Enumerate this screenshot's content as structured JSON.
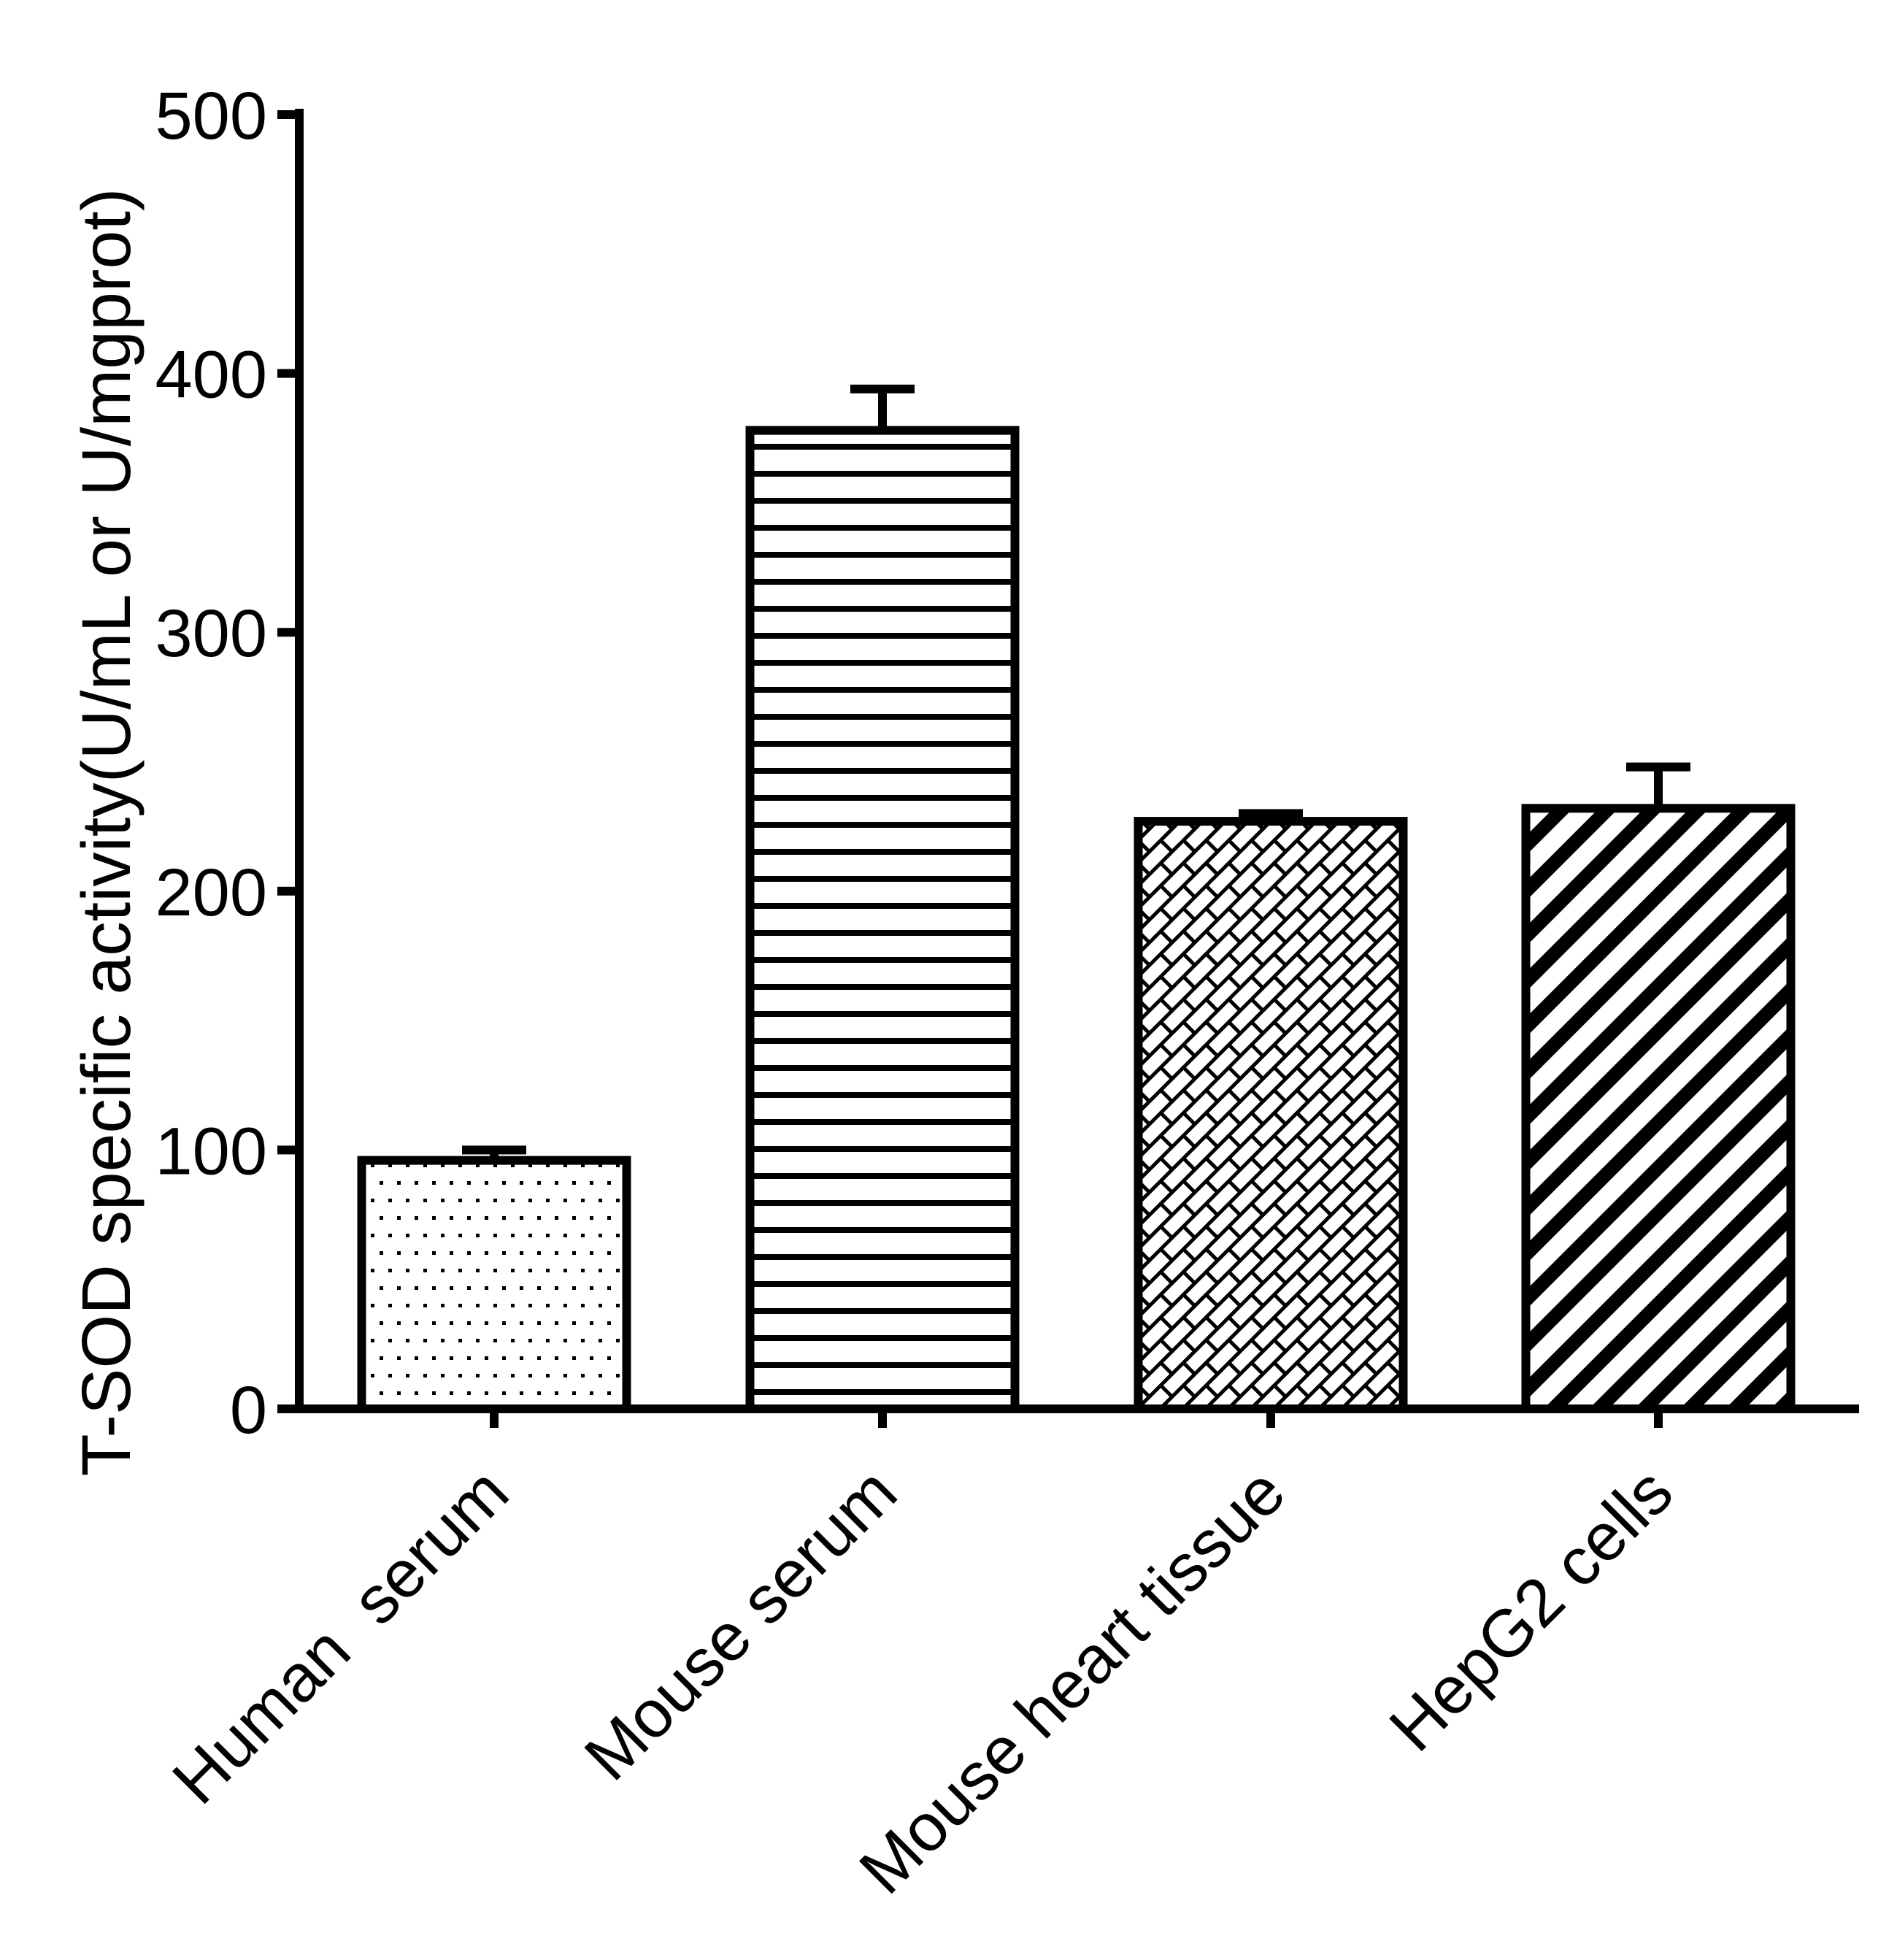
{
  "figure": {
    "background": "#ffffff",
    "ink_color": "#000000"
  },
  "chart_data": {
    "type": "bar",
    "title": "",
    "ylabel": "T-SOD specific activity(U/mL or U/mgprot)",
    "xlabel": "",
    "categories": [
      "Human  serum",
      "Mouse serum",
      "Mouse heart tissue",
      "HepG2 cells"
    ],
    "series": [
      {
        "name": "T-SOD specific activity",
        "values": [
          96,
          378,
          227,
          232
        ],
        "errors_sd": [
          4,
          16,
          3,
          16
        ]
      }
    ],
    "ylim": [
      0,
      500
    ],
    "yticks": [
      0,
      100,
      200,
      300,
      400,
      500
    ],
    "grid": false,
    "legend_position": "none",
    "bar_fill": "#ffffff",
    "bar_outline": "#000000",
    "bar_patterns": [
      "dots",
      "horizontal-lines",
      "diagonal-bricks",
      "diagonal-stripes"
    ],
    "error_bars": "upper half with cap",
    "x_label_rotation_deg": 45
  }
}
